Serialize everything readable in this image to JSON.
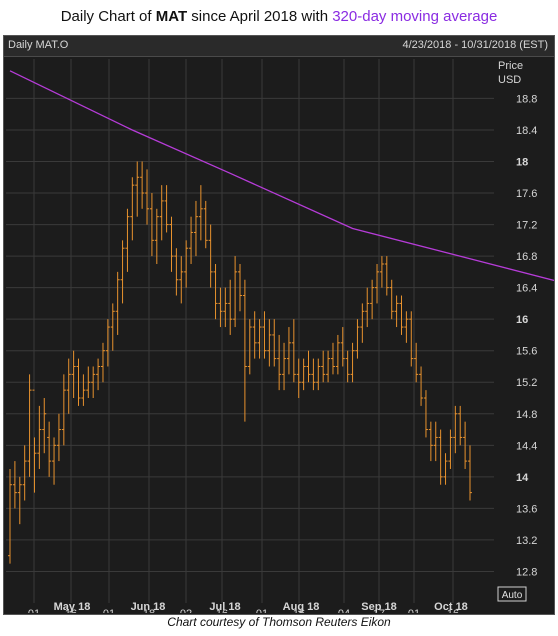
{
  "title": {
    "prefix": "Daily Chart of ",
    "ticker": "MAT",
    "middle": " since April 2018 with ",
    "ma_label": "320-day moving average"
  },
  "chart_header": {
    "left": "Daily MAT.O",
    "right": "4/23/2018 - 10/31/2018 (EST)"
  },
  "caption": "Chart courtesy of Thomson Reuters Eikon",
  "colors": {
    "bars": "#e8922e",
    "moving_average": "#b63cd8",
    "background": "#1c1c1c",
    "grid": "#3a3a3a",
    "text": "#d6d6d6"
  },
  "chart_data": {
    "type": "line",
    "title": "Daily Chart of MAT since April 2018 with 320-day moving average",
    "y_axis": {
      "title": "Price",
      "units": "USD",
      "ylim": [
        12.4,
        19.3
      ],
      "ticks": [
        12.8,
        13.2,
        13.6,
        14,
        14.4,
        14.8,
        15.2,
        15.6,
        16,
        16.4,
        16.8,
        17.2,
        17.6,
        18,
        18.4,
        18.8
      ],
      "highlighted_ticks": [
        14,
        16,
        18
      ],
      "button": "Auto"
    },
    "x_axis": {
      "day_ticks": [
        "01",
        "16",
        "01",
        "18",
        "02",
        "16",
        "01",
        "16",
        "04",
        "17",
        "01",
        "16"
      ],
      "month_labels": [
        "May 18",
        "Jun 18",
        "Jul 18",
        "Aug 18",
        "Sep 18",
        "Oct 18"
      ],
      "range": [
        "4/23/2018",
        "10/31/2018"
      ]
    },
    "grid": true,
    "series": [
      {
        "name": "MAT.O",
        "style": "OHLC bars",
        "values": [
          [
            13.0,
            14.1,
            12.9,
            13.9
          ],
          [
            13.9,
            14.2,
            13.6,
            13.8
          ],
          [
            13.8,
            14.0,
            13.4,
            13.9
          ],
          [
            13.9,
            14.4,
            13.7,
            14.2
          ],
          [
            14.2,
            15.3,
            14.0,
            15.1
          ],
          [
            15.1,
            14.5,
            13.8,
            14.3
          ],
          [
            14.3,
            14.9,
            14.1,
            14.6
          ],
          [
            14.6,
            15.0,
            14.3,
            14.8
          ],
          [
            14.5,
            14.7,
            14.0,
            14.2
          ],
          [
            14.2,
            14.5,
            13.9,
            14.4
          ],
          [
            14.4,
            14.8,
            14.2,
            14.6
          ],
          [
            14.6,
            15.3,
            14.4,
            15.1
          ],
          [
            15.1,
            15.5,
            14.8,
            15.3
          ],
          [
            15.3,
            15.6,
            15.0,
            15.4
          ],
          [
            15.4,
            15.5,
            14.9,
            15.0
          ],
          [
            15.0,
            15.3,
            14.9,
            15.1
          ],
          [
            15.1,
            15.4,
            15.0,
            15.2
          ],
          [
            15.2,
            15.4,
            15.0,
            15.3
          ],
          [
            15.3,
            15.5,
            15.1,
            15.4
          ],
          [
            15.4,
            15.7,
            15.2,
            15.6
          ],
          [
            15.6,
            16.0,
            15.4,
            15.9
          ],
          [
            15.9,
            16.2,
            15.6,
            16.1
          ],
          [
            16.1,
            16.6,
            15.8,
            16.5
          ],
          [
            16.5,
            17.0,
            16.2,
            16.9
          ],
          [
            16.9,
            17.4,
            16.6,
            17.3
          ],
          [
            17.3,
            17.8,
            17.0,
            17.7
          ],
          [
            17.7,
            18.0,
            17.3,
            17.8
          ],
          [
            17.8,
            18.0,
            17.4,
            17.6
          ],
          [
            17.6,
            17.9,
            17.2,
            17.4
          ],
          [
            17.4,
            17.6,
            16.8,
            17.0
          ],
          [
            17.0,
            17.4,
            16.7,
            17.3
          ],
          [
            17.3,
            17.7,
            17.0,
            17.5
          ],
          [
            17.5,
            17.7,
            17.1,
            17.2
          ],
          [
            17.2,
            17.3,
            16.6,
            16.8
          ],
          [
            16.8,
            16.9,
            16.3,
            16.5
          ],
          [
            16.5,
            16.8,
            16.2,
            16.6
          ],
          [
            16.6,
            17.0,
            16.4,
            16.9
          ],
          [
            16.9,
            17.3,
            16.7,
            17.1
          ],
          [
            17.1,
            17.5,
            16.8,
            17.3
          ],
          [
            17.3,
            17.7,
            17.0,
            17.4
          ],
          [
            17.4,
            17.5,
            16.9,
            17.0
          ],
          [
            17.0,
            17.2,
            16.4,
            16.6
          ],
          [
            16.6,
            16.7,
            16.0,
            16.2
          ],
          [
            16.2,
            16.4,
            15.9,
            16.1
          ],
          [
            16.1,
            16.4,
            15.9,
            16.2
          ],
          [
            16.2,
            16.5,
            15.8,
            16.0
          ],
          [
            16.0,
            16.8,
            15.9,
            16.6
          ],
          [
            16.6,
            16.7,
            16.1,
            16.3
          ],
          [
            16.3,
            16.5,
            14.7,
            15.4
          ],
          [
            15.4,
            16.0,
            15.3,
            15.9
          ],
          [
            15.9,
            16.1,
            15.5,
            15.7
          ],
          [
            15.7,
            16.0,
            15.5,
            15.9
          ],
          [
            15.9,
            16.1,
            15.5,
            15.6
          ],
          [
            15.6,
            16.0,
            15.4,
            15.8
          ],
          [
            15.8,
            16.0,
            15.4,
            15.5
          ],
          [
            15.5,
            15.8,
            15.1,
            15.3
          ],
          [
            15.3,
            15.7,
            15.1,
            15.5
          ],
          [
            15.5,
            15.9,
            15.3,
            15.7
          ],
          [
            15.7,
            16.0,
            15.2,
            15.3
          ],
          [
            15.3,
            15.5,
            15.0,
            15.2
          ],
          [
            15.2,
            15.5,
            15.1,
            15.4
          ],
          [
            15.4,
            15.6,
            15.2,
            15.3
          ],
          [
            15.3,
            15.5,
            15.1,
            15.2
          ],
          [
            15.2,
            15.5,
            15.1,
            15.4
          ],
          [
            15.4,
            15.6,
            15.2,
            15.3
          ],
          [
            15.3,
            15.6,
            15.2,
            15.5
          ],
          [
            15.5,
            15.7,
            15.3,
            15.4
          ],
          [
            15.4,
            15.8,
            15.3,
            15.7
          ],
          [
            15.7,
            15.9,
            15.4,
            15.5
          ],
          [
            15.5,
            15.6,
            15.2,
            15.3
          ],
          [
            15.3,
            15.7,
            15.2,
            15.6
          ],
          [
            15.6,
            16.0,
            15.5,
            15.9
          ],
          [
            15.9,
            16.2,
            15.7,
            16.1
          ],
          [
            16.1,
            16.4,
            15.9,
            16.2
          ],
          [
            16.2,
            16.5,
            16.0,
            16.4
          ],
          [
            16.4,
            16.7,
            16.2,
            16.6
          ],
          [
            16.6,
            16.8,
            16.4,
            16.7
          ],
          [
            16.7,
            16.8,
            16.3,
            16.4
          ],
          [
            16.4,
            16.5,
            16.0,
            16.1
          ],
          [
            16.1,
            16.3,
            15.9,
            16.2
          ],
          [
            16.2,
            16.3,
            15.8,
            15.9
          ],
          [
            15.9,
            16.1,
            15.7,
            16.0
          ],
          [
            16.0,
            16.1,
            15.4,
            15.5
          ],
          [
            15.5,
            15.7,
            15.2,
            15.3
          ],
          [
            15.3,
            15.4,
            14.9,
            15.0
          ],
          [
            15.0,
            15.1,
            14.5,
            14.6
          ],
          [
            14.6,
            14.7,
            14.2,
            14.4
          ],
          [
            14.4,
            14.7,
            14.2,
            14.5
          ],
          [
            14.5,
            14.6,
            13.9,
            14.0
          ],
          [
            14.0,
            14.3,
            13.9,
            14.2
          ],
          [
            14.2,
            14.6,
            14.1,
            14.5
          ],
          [
            14.5,
            14.9,
            14.3,
            14.8
          ],
          [
            14.8,
            14.9,
            14.4,
            14.5
          ],
          [
            14.5,
            14.7,
            14.1,
            14.2
          ],
          [
            14.2,
            14.4,
            13.7,
            13.8
          ]
        ]
      },
      {
        "name": "320-day moving average",
        "style": "line",
        "values": [
          [
            0,
            19.15
          ],
          [
            25,
            18.4
          ],
          [
            45,
            17.85
          ],
          [
            70,
            17.15
          ],
          [
            95,
            16.75
          ],
          [
            120,
            16.35
          ],
          [
            140,
            16.1
          ],
          [
            148,
            15.9
          ]
        ]
      }
    ]
  }
}
